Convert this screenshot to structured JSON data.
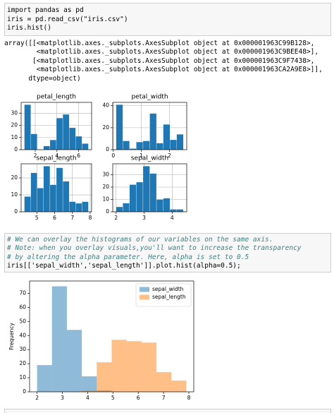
{
  "cells": [
    {
      "code": [
        "import pandas as pd",
        "iris = pd.read_csv(\"iris.csv\")",
        "iris.hist()"
      ],
      "output": [
        "array([[<matplotlib.axes._subplots.AxesSubplot object at 0x000001963C99B128>,",
        "        <matplotlib.axes._subplots.AxesSubplot object at 0x000001963C9BEE48>],",
        "       [<matplotlib.axes._subplots.AxesSubplot object at 0x000001963C9F7438>,",
        "        <matplotlib.axes._subplots.AxesSubplot object at 0x000001963CA2A9E8>]],",
        "      dtype=object)"
      ]
    },
    {
      "comments": [
        "# We can overlay the histograms of our variables on the same axis.",
        "# Note: when you overlay visuals,you'll want to increase the transparency",
        "# by altering the alpha parameter. Here, alpha is set to 0.5"
      ],
      "code": [
        "iris[['sepal_width','sepal_length']].plot.hist(alpha=0.5);"
      ]
    }
  ],
  "chart_data": [
    {
      "type": "histogram",
      "title": "petal_length",
      "color": "#1f77b4",
      "grid": true,
      "bins": [
        1.0,
        1.59,
        2.18,
        2.77,
        3.36,
        3.95,
        4.54,
        5.13,
        5.72,
        6.31,
        6.9
      ],
      "values": [
        37,
        13,
        0,
        3,
        8,
        26,
        29,
        18,
        11,
        5
      ],
      "xlim": [
        0.705,
        7.195
      ],
      "ylim": [
        0,
        38.85
      ],
      "xticks": [
        2,
        4,
        6
      ],
      "yticks": [
        0,
        10,
        20,
        30
      ]
    },
    {
      "type": "histogram",
      "title": "petal_width",
      "color": "#1f77b4",
      "grid": true,
      "bins": [
        0.1,
        0.34,
        0.58,
        0.82,
        1.06,
        1.3,
        1.54,
        1.78,
        2.02,
        2.26,
        2.5
      ],
      "values": [
        41,
        8,
        1,
        7,
        8,
        33,
        6,
        23,
        9,
        14
      ],
      "xlim": [
        -0.02,
        2.62
      ],
      "ylim": [
        0,
        43.05
      ],
      "xticks": [
        0,
        1,
        2
      ],
      "yticks": [
        0,
        20,
        40
      ]
    },
    {
      "type": "histogram",
      "title": "sepal_length",
      "color": "#1f77b4",
      "grid": true,
      "bins": [
        4.3,
        4.66,
        5.02,
        5.38,
        5.74,
        6.1,
        6.46,
        6.82,
        7.18,
        7.54,
        7.9
      ],
      "values": [
        9,
        23,
        14,
        27,
        16,
        26,
        18,
        6,
        5,
        6
      ],
      "xlim": [
        4.12,
        8.08
      ],
      "ylim": [
        0,
        28.35
      ],
      "xticks": [
        5,
        6,
        7,
        8
      ],
      "yticks": [
        0,
        10,
        20
      ]
    },
    {
      "type": "histogram",
      "title": "sepal_width",
      "color": "#1f77b4",
      "grid": true,
      "bins": [
        2.0,
        2.24,
        2.48,
        2.72,
        2.96,
        3.2,
        3.44,
        3.68,
        3.92,
        4.16,
        4.4
      ],
      "values": [
        4,
        7,
        22,
        24,
        37,
        31,
        10,
        11,
        2,
        2
      ],
      "xlim": [
        1.88,
        4.52
      ],
      "ylim": [
        0,
        38.85
      ],
      "xticks": [
        2,
        3,
        4
      ],
      "yticks": [
        0,
        10,
        20,
        30
      ]
    },
    {
      "type": "histogram",
      "ylabel": "Frequency",
      "grid": false,
      "alpha": 0.5,
      "legend": "upper right",
      "bins": [
        2.0,
        2.59,
        3.18,
        3.77,
        4.36,
        4.95,
        5.54,
        6.13,
        6.72,
        7.31,
        7.9
      ],
      "series": [
        {
          "name": "sepal_width",
          "color": "#1f77b4",
          "values": [
            19,
            75,
            44,
            11,
            1,
            0,
            0,
            0,
            0,
            0
          ]
        },
        {
          "name": "sepal_length",
          "color": "#ff7f0e",
          "values": [
            0,
            0,
            0,
            1,
            21,
            37,
            36,
            35,
            14,
            8
          ]
        }
      ],
      "xlim": [
        1.705,
        8.195
      ],
      "ylim": [
        0,
        78.75
      ],
      "xticks": [
        2,
        3,
        4,
        5,
        6,
        7,
        8
      ],
      "yticks": [
        0,
        10,
        20,
        30,
        40,
        50,
        60,
        70
      ]
    }
  ]
}
